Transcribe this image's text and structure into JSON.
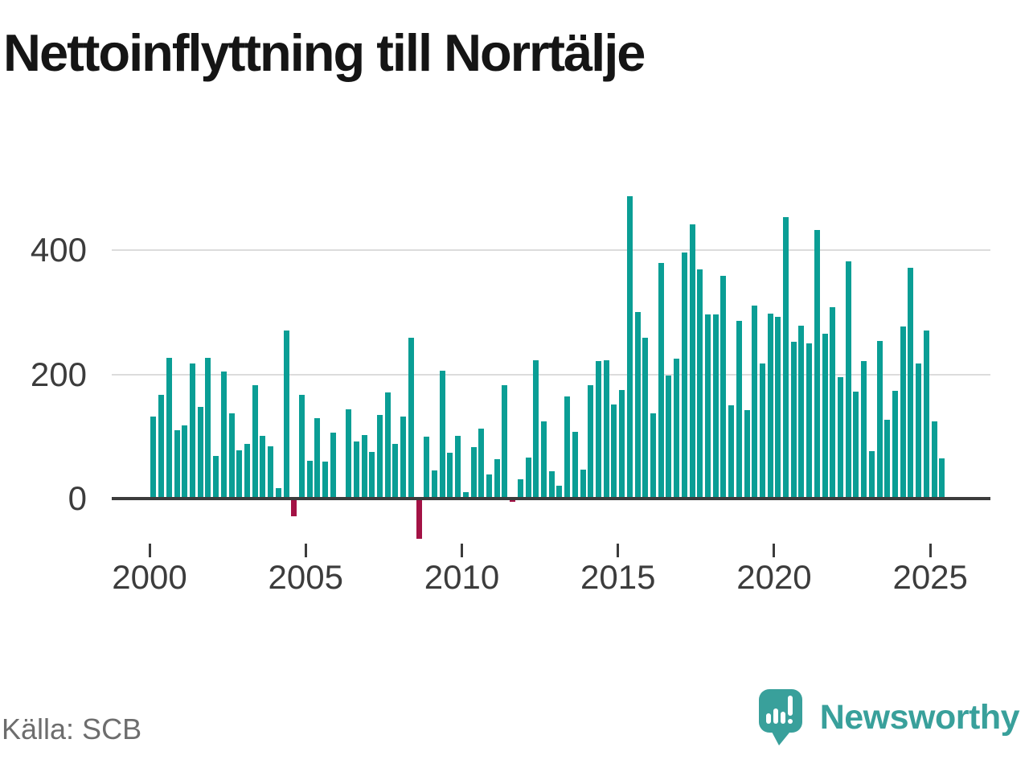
{
  "title": "Nettoinflyttning till Norrtälje",
  "source": "Källa: SCB",
  "brand": {
    "name": "Newsworthy",
    "icon": "speech-bubble-bar-chart-icon"
  },
  "colors": {
    "bar_positive": "#0a9e95",
    "bar_negative": "#a31245",
    "brand_teal": "#39a09b",
    "gridline": "#dcdcdc",
    "axis_text": "#3c3c3c",
    "title_text": "#151515",
    "muted_text": "#6d6d6d"
  },
  "chart_data": {
    "type": "bar",
    "title": "Nettoinflyttning till Norrtälje",
    "series_name": "Nettoinflyttning per kvartal",
    "x_unit": "quarter",
    "grid": "horizontal",
    "legend": "none",
    "yticks": [
      0,
      200,
      400
    ],
    "xticks": [
      2000,
      2005,
      2010,
      2015,
      2020,
      2025
    ],
    "ylim": [
      -100,
      520
    ],
    "categories": [
      "2000Q1",
      "2000Q2",
      "2000Q3",
      "2000Q4",
      "2001Q1",
      "2001Q2",
      "2001Q3",
      "2001Q4",
      "2002Q1",
      "2002Q2",
      "2002Q3",
      "2002Q4",
      "2003Q1",
      "2003Q2",
      "2003Q3",
      "2003Q4",
      "2004Q1",
      "2004Q2",
      "2004Q3",
      "2004Q4",
      "2005Q1",
      "2005Q2",
      "2005Q3",
      "2005Q4",
      "2006Q1",
      "2006Q2",
      "2006Q3",
      "2006Q4",
      "2007Q1",
      "2007Q2",
      "2007Q3",
      "2007Q4",
      "2008Q1",
      "2008Q2",
      "2008Q3",
      "2008Q4",
      "2009Q1",
      "2009Q2",
      "2009Q3",
      "2009Q4",
      "2010Q1",
      "2010Q2",
      "2010Q3",
      "2010Q4",
      "2011Q1",
      "2011Q2",
      "2011Q3",
      "2011Q4",
      "2012Q1",
      "2012Q2",
      "2012Q3",
      "2012Q4",
      "2013Q1",
      "2013Q2",
      "2013Q3",
      "2013Q4",
      "2014Q1",
      "2014Q2",
      "2014Q3",
      "2014Q4",
      "2015Q1",
      "2015Q2",
      "2015Q3",
      "2015Q4",
      "2016Q1",
      "2016Q2",
      "2016Q3",
      "2016Q4",
      "2017Q1",
      "2017Q2",
      "2017Q3",
      "2017Q4",
      "2018Q1",
      "2018Q2",
      "2018Q3",
      "2018Q4",
      "2019Q1",
      "2019Q2",
      "2019Q3",
      "2019Q4",
      "2020Q1",
      "2020Q2",
      "2020Q3",
      "2020Q4",
      "2021Q1",
      "2021Q2",
      "2021Q3",
      "2021Q4",
      "2022Q1",
      "2022Q2",
      "2022Q3",
      "2022Q4",
      "2023Q1",
      "2023Q2",
      "2023Q3",
      "2023Q4",
      "2024Q1",
      "2024Q2",
      "2024Q3",
      "2024Q4",
      "2025Q1",
      "2025Q2"
    ],
    "values": [
      132,
      167,
      227,
      110,
      118,
      217,
      148,
      227,
      69,
      204,
      137,
      78,
      88,
      183,
      101,
      84,
      17,
      270,
      -28,
      167,
      61,
      129,
      60,
      106,
      0,
      144,
      92,
      102,
      75,
      134,
      171,
      88,
      132,
      259,
      -65,
      100,
      45,
      206,
      74,
      101,
      11,
      83,
      112,
      39,
      64,
      182,
      -5,
      31,
      66,
      223,
      124,
      44,
      21,
      165,
      108,
      47,
      182,
      222,
      223,
      151,
      175,
      487,
      300,
      259,
      137,
      379,
      198,
      225,
      396,
      442,
      369,
      296,
      296,
      358,
      150,
      286,
      143,
      311,
      218,
      298,
      292,
      453,
      253,
      278,
      250,
      432,
      265,
      308,
      195,
      382,
      172,
      222,
      77,
      254,
      127,
      174,
      277,
      371,
      217,
      271,
      124,
      65
    ]
  }
}
